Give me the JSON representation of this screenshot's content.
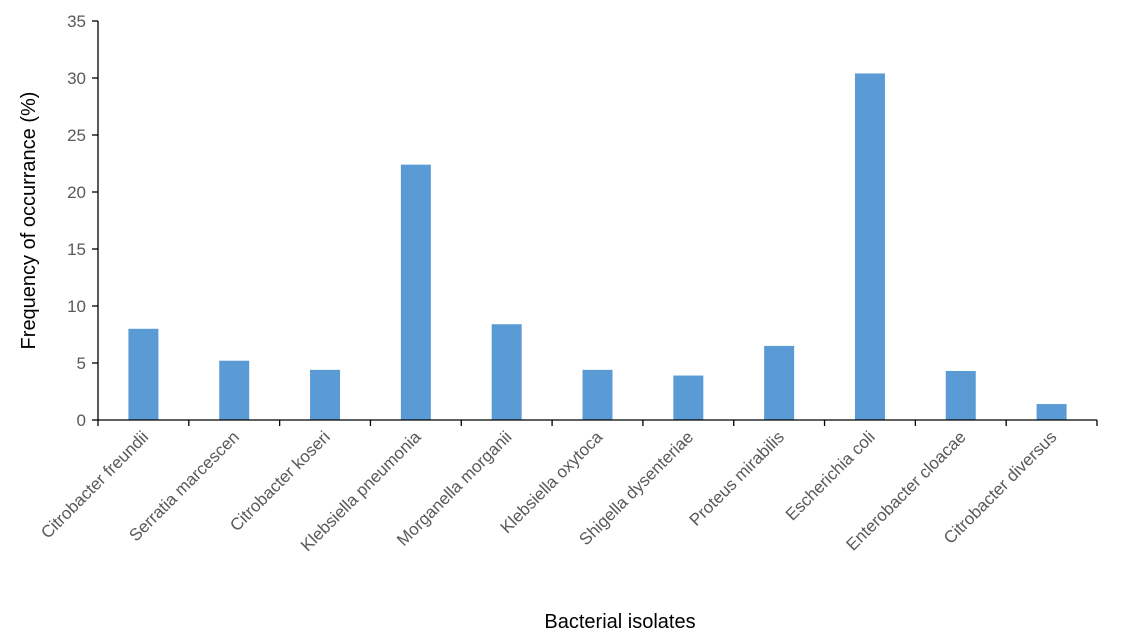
{
  "chart_data": {
    "type": "bar",
    "title": "",
    "xlabel": "Bacterial isolates",
    "ylabel": "Frequency of occurrance (%)",
    "ylim": [
      0,
      35
    ],
    "yticks": [
      0,
      5,
      10,
      15,
      20,
      25,
      30,
      35
    ],
    "grid": false,
    "bar_color": "#5b9bd5",
    "categories": [
      "Citrobacter freundii",
      "Serratia marcescen",
      "Citrobacter koseri",
      "Klebsiella pneumonia",
      "Morganella morganii",
      "Klebsiella oxytoca",
      "Shigella dysenteriae",
      "Proteus mirabilis",
      "Escherichia coli",
      "Enterobacter cloacae",
      "Citrobacter diversus"
    ],
    "values": [
      8.0,
      5.2,
      4.4,
      22.4,
      8.4,
      4.4,
      3.9,
      6.5,
      30.4,
      4.3,
      1.4
    ]
  }
}
